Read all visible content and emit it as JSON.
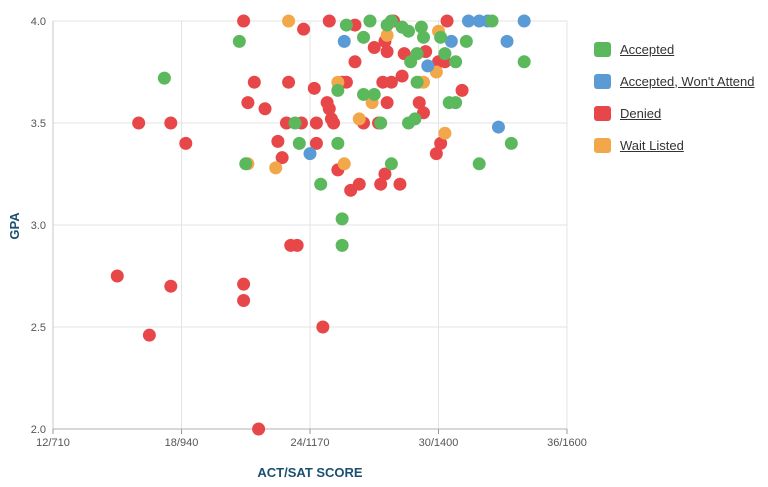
{
  "chart_data": {
    "type": "scatter",
    "title": "",
    "xlabel": "ACT/SAT SCORE",
    "ylabel": "GPA",
    "xlim": [
      12,
      36
    ],
    "ylim": [
      2.0,
      4.0
    ],
    "x_ticks": [
      {
        "value": 12,
        "label": "12/710"
      },
      {
        "value": 18,
        "label": "18/940"
      },
      {
        "value": 24,
        "label": "24/1170"
      },
      {
        "value": 30,
        "label": "30/1400"
      },
      {
        "value": 36,
        "label": "36/1600"
      }
    ],
    "y_ticks": [
      {
        "value": 2.0,
        "label": "2.0"
      },
      {
        "value": 2.5,
        "label": "2.5"
      },
      {
        "value": 3.0,
        "label": "3.0"
      },
      {
        "value": 3.5,
        "label": "3.5"
      },
      {
        "value": 4.0,
        "label": "4.0"
      }
    ],
    "grid": true,
    "legend_position": "right",
    "series": [
      {
        "name": "Accepted",
        "color": "#5cb85c",
        "points": [
          [
            17.2,
            3.72
          ],
          [
            20.7,
            3.9
          ],
          [
            21.0,
            3.3
          ],
          [
            23.3,
            3.5
          ],
          [
            23.5,
            3.4
          ],
          [
            24.5,
            3.2
          ],
          [
            25.3,
            3.66
          ],
          [
            25.7,
            3.98
          ],
          [
            25.3,
            3.4
          ],
          [
            25.5,
            3.03
          ],
          [
            25.5,
            2.9
          ],
          [
            26.5,
            3.92
          ],
          [
            26.5,
            3.64
          ],
          [
            26.8,
            4.0
          ],
          [
            27.0,
            3.64
          ],
          [
            27.3,
            3.5
          ],
          [
            27.6,
            3.98
          ],
          [
            27.8,
            4.0
          ],
          [
            27.8,
            3.3
          ],
          [
            28.3,
            3.97
          ],
          [
            28.6,
            3.95
          ],
          [
            28.7,
            3.8
          ],
          [
            28.6,
            3.5
          ],
          [
            28.9,
            3.52
          ],
          [
            29.0,
            3.84
          ],
          [
            29.2,
            3.97
          ],
          [
            29.3,
            3.92
          ],
          [
            29.0,
            3.7
          ],
          [
            30.1,
            3.92
          ],
          [
            30.3,
            3.84
          ],
          [
            30.5,
            3.6
          ],
          [
            30.8,
            3.6
          ],
          [
            30.8,
            3.8
          ],
          [
            31.3,
            3.9
          ],
          [
            31.9,
            3.3
          ],
          [
            32.5,
            4.0
          ],
          [
            33.4,
            3.4
          ],
          [
            34.0,
            3.8
          ]
        ]
      },
      {
        "name": "Accepted, Won't Attend",
        "color": "#5b9bd5",
        "points": [
          [
            24.0,
            3.35
          ],
          [
            25.6,
            3.9
          ],
          [
            29.5,
            3.78
          ],
          [
            30.6,
            3.9
          ],
          [
            31.4,
            4.0
          ],
          [
            31.9,
            4.0
          ],
          [
            32.3,
            4.0
          ],
          [
            32.8,
            3.48
          ],
          [
            33.2,
            3.9
          ],
          [
            34.0,
            4.0
          ]
        ]
      },
      {
        "name": "Denied",
        "color": "#e8474a",
        "points": [
          [
            15.0,
            2.75
          ],
          [
            16.0,
            3.5
          ],
          [
            16.5,
            2.46
          ],
          [
            17.5,
            2.7
          ],
          [
            17.5,
            3.5
          ],
          [
            18.2,
            3.4
          ],
          [
            20.9,
            2.71
          ],
          [
            20.9,
            2.63
          ],
          [
            20.9,
            4.0
          ],
          [
            21.1,
            3.6
          ],
          [
            21.4,
            3.7
          ],
          [
            21.6,
            2.0
          ],
          [
            21.9,
            3.57
          ],
          [
            22.5,
            3.41
          ],
          [
            22.7,
            3.33
          ],
          [
            22.9,
            3.5
          ],
          [
            23.0,
            3.7
          ],
          [
            23.1,
            2.9
          ],
          [
            23.4,
            2.9
          ],
          [
            23.6,
            3.5
          ],
          [
            23.7,
            3.96
          ],
          [
            24.2,
            3.67
          ],
          [
            24.3,
            3.4
          ],
          [
            24.3,
            3.5
          ],
          [
            24.6,
            2.5
          ],
          [
            24.8,
            3.6
          ],
          [
            24.9,
            4.0
          ],
          [
            24.9,
            3.57
          ],
          [
            25.0,
            3.52
          ],
          [
            25.1,
            3.5
          ],
          [
            25.3,
            3.27
          ],
          [
            25.5,
            3.7
          ],
          [
            25.7,
            3.7
          ],
          [
            25.9,
            3.17
          ],
          [
            26.1,
            3.98
          ],
          [
            26.1,
            3.8
          ],
          [
            26.3,
            3.2
          ],
          [
            26.5,
            3.5
          ],
          [
            27.0,
            3.87
          ],
          [
            27.2,
            3.5
          ],
          [
            27.3,
            3.2
          ],
          [
            27.4,
            3.7
          ],
          [
            27.5,
            3.9
          ],
          [
            27.5,
            3.25
          ],
          [
            27.6,
            3.85
          ],
          [
            27.6,
            3.6
          ],
          [
            27.8,
            3.7
          ],
          [
            27.9,
            4.0
          ],
          [
            28.2,
            3.2
          ],
          [
            28.3,
            3.73
          ],
          [
            28.4,
            3.84
          ],
          [
            29.1,
            3.6
          ],
          [
            29.3,
            3.55
          ],
          [
            29.4,
            3.85
          ],
          [
            29.9,
            3.35
          ],
          [
            30.0,
            3.8
          ],
          [
            30.1,
            3.4
          ],
          [
            30.3,
            3.8
          ],
          [
            30.4,
            4.0
          ],
          [
            31.1,
            3.66
          ]
        ]
      },
      {
        "name": "Wait Listed",
        "color": "#f2a84a",
        "points": [
          [
            21.1,
            3.3
          ],
          [
            22.4,
            3.28
          ],
          [
            23.0,
            4.0
          ],
          [
            25.3,
            3.7
          ],
          [
            25.6,
            3.3
          ],
          [
            26.3,
            3.52
          ],
          [
            26.9,
            3.6
          ],
          [
            27.6,
            3.93
          ],
          [
            29.1,
            3.7
          ],
          [
            29.3,
            3.7
          ],
          [
            29.9,
            3.75
          ],
          [
            30.0,
            3.95
          ],
          [
            30.3,
            3.45
          ]
        ]
      }
    ]
  }
}
